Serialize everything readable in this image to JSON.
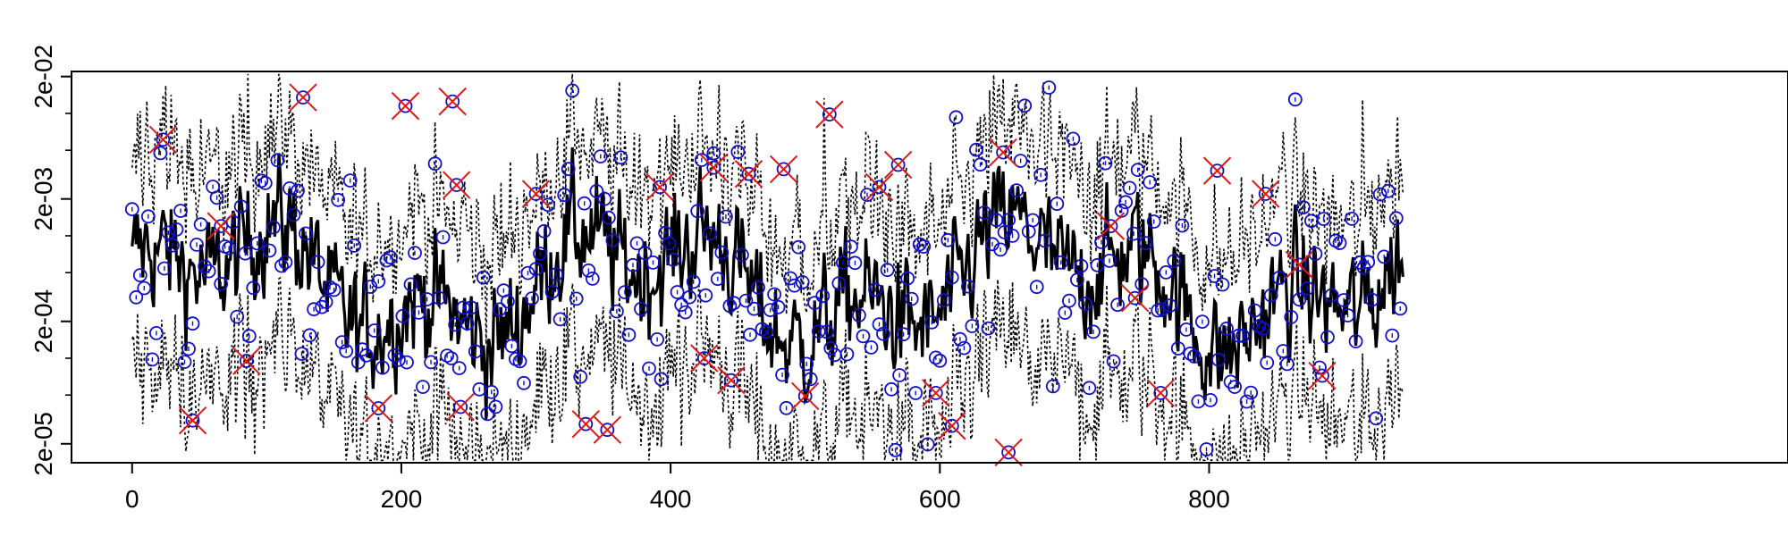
{
  "chart_data": {
    "type": "line",
    "title": "",
    "xlabel": "",
    "ylabel": "",
    "x_scale": "linear",
    "y_scale": "log",
    "xlim": [
      -45,
      1230
    ],
    "ylim": [
      1.4e-05,
      0.022
    ],
    "x_ticks": [
      0,
      200,
      400,
      600,
      800
    ],
    "x_tick_labels": [
      "0",
      "200",
      "400",
      "600",
      "800"
    ],
    "y_ticks": [
      2e-05,
      0.0002,
      0.002,
      0.02
    ],
    "y_tick_labels": [
      "2e-05",
      "2e-04",
      "2e-03",
      "2e-02"
    ],
    "n_points": 945,
    "grid": false,
    "legend": "none",
    "series_styles": {
      "bound_lines": "dotted black",
      "center_line": "solid black",
      "observed_points": "blue open circles",
      "flagged_points": "red crosses"
    },
    "flagged_points": [
      {
        "x": 23,
        "y": 0.0061
      },
      {
        "x": 45,
        "y": 3.1e-05
      },
      {
        "x": 66,
        "y": 0.0012
      },
      {
        "x": 85,
        "y": 9.5e-05
      },
      {
        "x": 127,
        "y": 0.0135
      },
      {
        "x": 183,
        "y": 3.9e-05
      },
      {
        "x": 203,
        "y": 0.0115
      },
      {
        "x": 238,
        "y": 0.0125
      },
      {
        "x": 241,
        "y": 0.0026
      },
      {
        "x": 244,
        "y": 4e-05
      },
      {
        "x": 300,
        "y": 0.0022
      },
      {
        "x": 337,
        "y": 2.9e-05
      },
      {
        "x": 353,
        "y": 2.6e-05
      },
      {
        "x": 392,
        "y": 0.0025
      },
      {
        "x": 425,
        "y": 0.0001
      },
      {
        "x": 432,
        "y": 0.0036
      },
      {
        "x": 445,
        "y": 6.6e-05
      },
      {
        "x": 458,
        "y": 0.0032
      },
      {
        "x": 484,
        "y": 0.0035
      },
      {
        "x": 500,
        "y": 4.9e-05
      },
      {
        "x": 518,
        "y": 0.0098
      },
      {
        "x": 555,
        "y": 0.0025
      },
      {
        "x": 569,
        "y": 0.0038
      },
      {
        "x": 597,
        "y": 5.2e-05
      },
      {
        "x": 609,
        "y": 2.8e-05
      },
      {
        "x": 647,
        "y": 0.0048
      },
      {
        "x": 651,
        "y": 1.7e-05
      },
      {
        "x": 727,
        "y": 0.0012
      },
      {
        "x": 745,
        "y": 0.00031
      },
      {
        "x": 764,
        "y": 5.2e-05
      },
      {
        "x": 806,
        "y": 0.0034
      },
      {
        "x": 842,
        "y": 0.0022
      },
      {
        "x": 867,
        "y": 0.00058
      },
      {
        "x": 884,
        "y": 7.2e-05
      }
    ]
  }
}
